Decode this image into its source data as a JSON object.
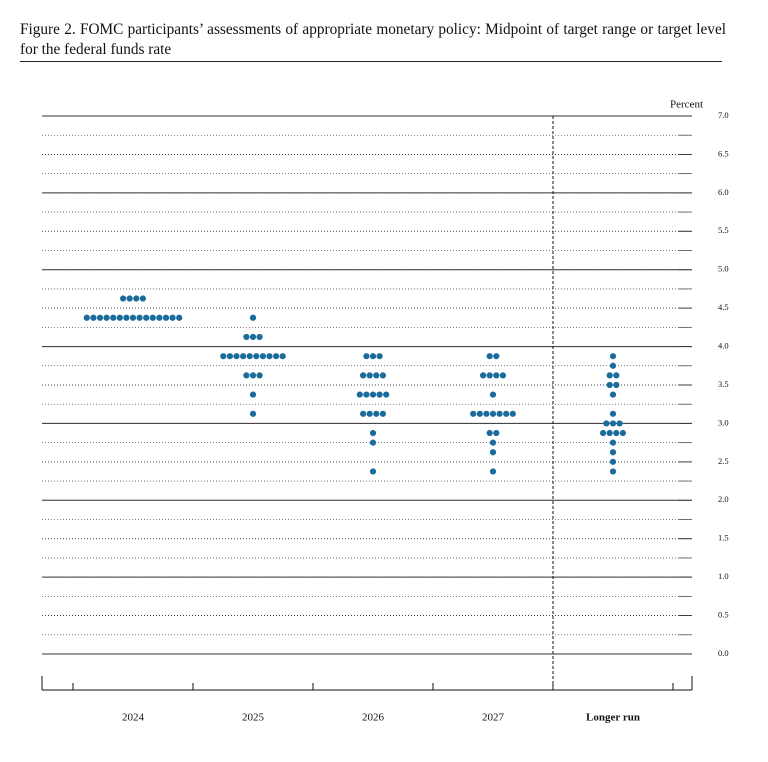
{
  "chart_data": {
    "type": "dotplot",
    "title": "Figure 2.  FOMC participants’ assessments of appropriate monetary policy: Midpoint of target range or target level for the federal funds rate",
    "y_axis_label": "Percent",
    "categories": [
      "2024",
      "2025",
      "2026",
      "2027",
      "Longer run"
    ],
    "values": [
      [
        4.625,
        4.625,
        4.625,
        4.625,
        4.375,
        4.375,
        4.375,
        4.375,
        4.375,
        4.375,
        4.375,
        4.375,
        4.375,
        4.375,
        4.375,
        4.375,
        4.375,
        4.375,
        4.375
      ],
      [
        4.375,
        4.125,
        4.125,
        4.125,
        3.875,
        3.875,
        3.875,
        3.875,
        3.875,
        3.875,
        3.875,
        3.875,
        3.875,
        3.875,
        3.625,
        3.625,
        3.625,
        3.375,
        3.125
      ],
      [
        3.875,
        3.875,
        3.875,
        3.625,
        3.625,
        3.625,
        3.625,
        3.375,
        3.375,
        3.375,
        3.375,
        3.375,
        3.125,
        3.125,
        3.125,
        3.125,
        2.875,
        2.75,
        2.375
      ],
      [
        3.875,
        3.875,
        3.625,
        3.625,
        3.625,
        3.625,
        3.375,
        3.125,
        3.125,
        3.125,
        3.125,
        3.125,
        3.125,
        3.125,
        2.875,
        2.875,
        2.75,
        2.625,
        2.375
      ],
      [
        3.875,
        3.75,
        3.625,
        3.625,
        3.5,
        3.5,
        3.375,
        3.125,
        3,
        3,
        3,
        2.875,
        2.875,
        2.875,
        2.875,
        2.75,
        2.625,
        2.5,
        2.375
      ]
    ],
    "color": "#1a6c9c",
    "ylim": [
      -0.3,
      7
    ],
    "yticks": [
      {
        "value": 0,
        "label": "0.0"
      },
      0.5,
      {
        "value": 1,
        "label": "1.0"
      },
      1.5,
      {
        "value": 2,
        "label": "2.0"
      },
      2.5,
      {
        "value": 3,
        "label": "3.0"
      },
      3.5,
      {
        "value": 4,
        "label": "4.0"
      },
      4.5,
      {
        "value": 5,
        "label": "5.0"
      },
      5.5,
      {
        "value": 6,
        "label": "6.0"
      },
      6.5,
      {
        "value": 7,
        "label": "7.0"
      }
    ],
    "minor_grid_step": 0.25,
    "grid": true
  }
}
